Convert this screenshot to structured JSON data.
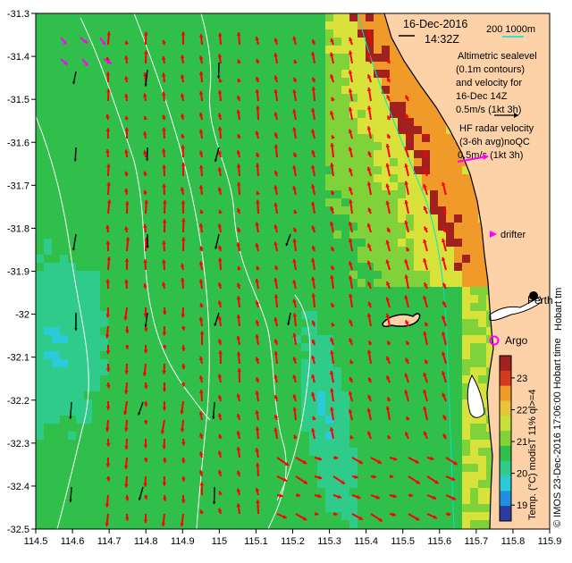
{
  "header": {
    "date": "16-Dec-2016",
    "time": "14:32Z",
    "scale_label": "200  1000m"
  },
  "legend": {
    "altimetry_lines": [
      "Altimetric sealevel",
      "(0.1m contours)",
      "and velocity for",
      "16-Dec 14Z",
      "0.5m/s (1kt 3h)"
    ],
    "hf_lines": [
      "HF radar velocity",
      "(3-6h avg)noQC",
      "0.5m/s (1kt 3h)"
    ],
    "drifter": "drifter",
    "argo": "Argo"
  },
  "places": {
    "perth": "Perth",
    "hobart": "Hobart tm"
  },
  "colorbar": {
    "title": "Temp. (°C) modisT 11% ql>=4",
    "ticks": [
      "19",
      "20",
      "21",
      "22",
      "23"
    ],
    "min": 18.5,
    "max": 23.7
  },
  "credit": "© IMOS 23-Dec-2016 17:06:00 Hobart time",
  "axes": {
    "x_ticks": [
      "114.5",
      "114.6",
      "114.7",
      "114.8",
      "114.9",
      "115",
      "115.1",
      "115.2",
      "115.3",
      "115.4",
      "115.5",
      "115.6",
      "115.7",
      "115.8",
      "115.9"
    ],
    "y_ticks": [
      "-31.3",
      "-31.4",
      "-31.5",
      "-31.6",
      "-31.7",
      "-31.8",
      "-31.9",
      "-32",
      "-32.1",
      "-32.2",
      "-32.3",
      "-32.4",
      "-32.5"
    ],
    "xlim": [
      114.5,
      115.9
    ],
    "ylim": [
      -32.5,
      -31.3
    ]
  },
  "colors": {
    "land": "#fdd2a9",
    "contour": "#ffffff",
    "hf_arrow": "#ff0000",
    "alt_arrow": "#000000",
    "drifter": "#ff00ff",
    "argo": "#ff00ff",
    "isobath": "#00e5cc"
  }
}
